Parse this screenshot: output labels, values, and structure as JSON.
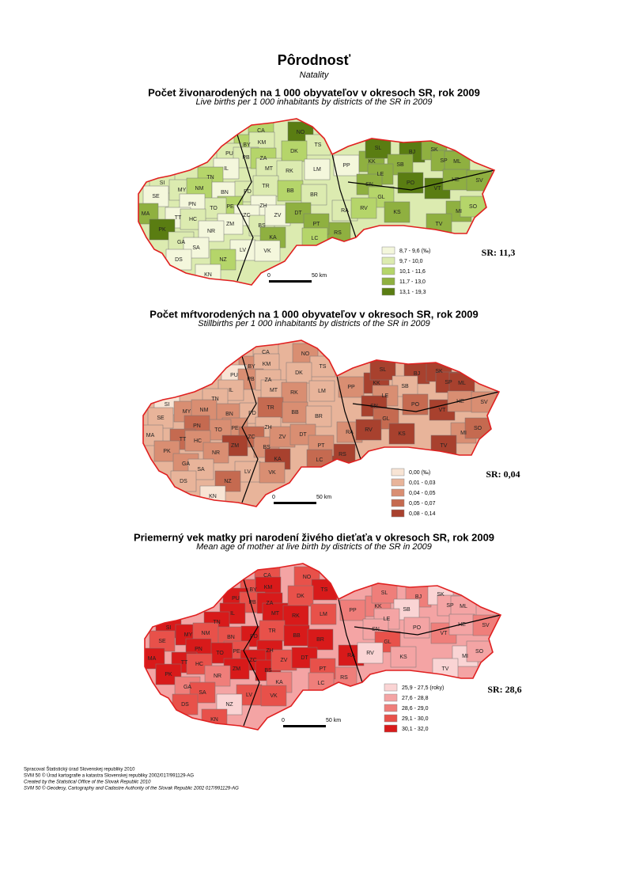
{
  "header": {
    "title": "Pôrodnosť",
    "subtitle": "Natality"
  },
  "districts": [
    "CA",
    "NO",
    "TS",
    "BY",
    "KM",
    "PU",
    "PB",
    "ZA",
    "DK",
    "MT",
    "RK",
    "LM",
    "IL",
    "TN",
    "SI",
    "MY",
    "NM",
    "BN",
    "PD",
    "TR",
    "BB",
    "BR",
    "PE",
    "TO",
    "SE",
    "PN",
    "TT",
    "HC",
    "ZH",
    "ZC",
    "ZM",
    "BS",
    "ZV",
    "DT",
    "MA",
    "PK",
    "RA",
    "KA",
    "RS",
    "PT",
    "LC",
    "NR",
    "GA",
    "SA",
    "LV",
    "VK",
    "DS",
    "NZ",
    "KN",
    "PP",
    "KK",
    "SL",
    "BJ",
    "SK",
    "SP",
    "ML",
    "SB",
    "LE",
    "SN",
    "PO",
    "VT",
    "HE",
    "SV",
    "GL",
    "RV",
    "KS",
    "MI",
    "SO",
    "TV"
  ],
  "maps": [
    {
      "title": "Počet živonarodených na 1 000 obyvateľov v okresoch SR, rok 2009",
      "subtitle": "Live births per 1 000 inhabitants by districts of the SR in 2009",
      "sr": "SR: 11,3",
      "legend": [
        {
          "label": "8,7 - 9,6 (‰)",
          "color": "#f4f7dc"
        },
        {
          "label": "9,7 - 10,0",
          "color": "#dcebb0"
        },
        {
          "label": "10,1 - 11,6",
          "color": "#b5d56a"
        },
        {
          "label": "11,7 - 13,0",
          "color": "#8fb040"
        },
        {
          "label": "13,1 - 19,3",
          "color": "#5a7d12"
        }
      ],
      "scale": {
        "zero": "0",
        "distance": "50 km"
      }
    },
    {
      "title": "Počet mŕtvorodených na 1 000 obyvateľov v okresoch SR, rok 2009",
      "subtitle": "Stillbirths per 1 000 inhabitants by districts of the SR in 2009",
      "sr": "SR: 0,04",
      "legend": [
        {
          "label": "0,00 (‰)",
          "color": "#f8e4d4"
        },
        {
          "label": "0,01 - 0,03",
          "color": "#e8b49a"
        },
        {
          "label": "0,04 - 0,05",
          "color": "#d98e72"
        },
        {
          "label": "0,05 - 0,07",
          "color": "#c56a50"
        },
        {
          "label": "0,08 - 0,14",
          "color": "#a8412e"
        }
      ],
      "scale": {
        "zero": "0",
        "distance": "50 km"
      }
    },
    {
      "title": "Priemerný vek matky pri narodení živého dieťaťa v okresoch SR, rok 2009",
      "subtitle": "Mean age of mother at live birth by districts of the SR in 2009",
      "sr": "SR: 28,6",
      "legend": [
        {
          "label": "25,9 - 27,5 (roky)",
          "color": "#fad4d4"
        },
        {
          "label": "27,6 - 28,8",
          "color": "#f4a4a4"
        },
        {
          "label": "28,6 - 29,0",
          "color": "#ef7e7a"
        },
        {
          "label": "29,1 - 30,0",
          "color": "#e8514a"
        },
        {
          "label": "30,1 - 32,0",
          "color": "#d81a1a"
        }
      ],
      "scale": {
        "zero": "0",
        "distance": "50 km"
      }
    }
  ],
  "footer": [
    "Spracoval Štatistický úrad Slovenskej republiky 2010",
    "SVM 50 © Úrad kartografie a katastra Slovenskej republiky 2002/017/991129-AG",
    "Created by the Statistical Office of the Slovak Republic 2010",
    "SVM 50 © Geodesy, Cartography and Cadastre Authority of the Slovak Republic 2002 017/991129-AG"
  ]
}
